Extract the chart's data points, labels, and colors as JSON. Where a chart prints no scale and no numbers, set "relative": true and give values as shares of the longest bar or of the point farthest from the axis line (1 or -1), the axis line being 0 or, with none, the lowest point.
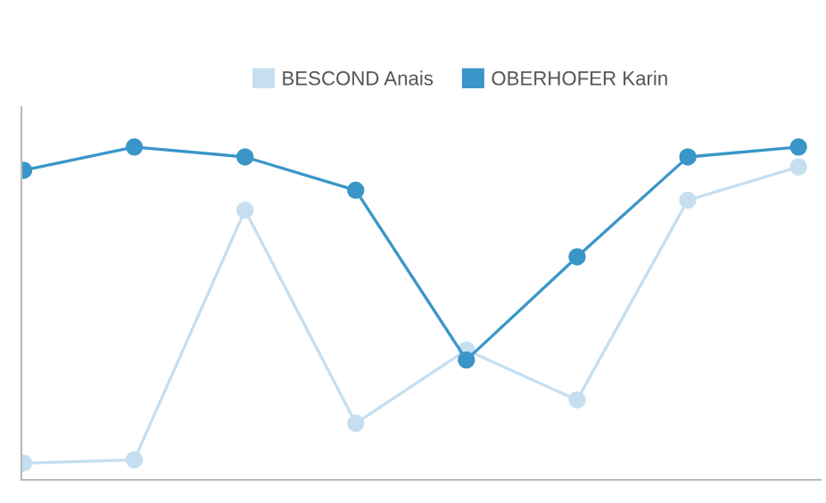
{
  "chart_data": {
    "type": "line",
    "relative": true,
    "categories": [
      null,
      null,
      null,
      null,
      null,
      null,
      null,
      null
    ],
    "series": [
      {
        "name": "BESCOND Anais",
        "color": "#c5dff0",
        "values": [
          0.05,
          0.06,
          0.81,
          0.17,
          0.39,
          0.24,
          0.84,
          0.94
        ]
      },
      {
        "name": "OBERHOFER Karin",
        "color": "#3a96c8",
        "values": [
          0.93,
          1,
          0.97,
          0.87,
          0.36,
          0.67,
          0.97,
          1
        ]
      }
    ],
    "marker": "circle",
    "line_style": "solid",
    "legend": "top",
    "grid": false
  }
}
